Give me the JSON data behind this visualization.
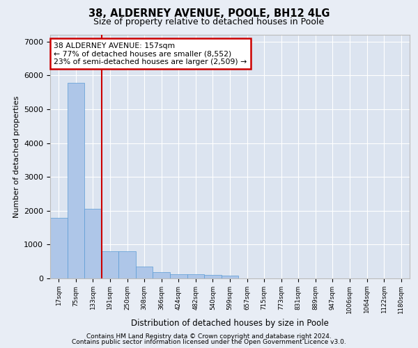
{
  "title1": "38, ALDERNEY AVENUE, POOLE, BH12 4LG",
  "title2": "Size of property relative to detached houses in Poole",
  "xlabel": "Distribution of detached houses by size in Poole",
  "ylabel": "Number of detached properties",
  "footnote1": "Contains HM Land Registry data © Crown copyright and database right 2024.",
  "footnote2": "Contains public sector information licensed under the Open Government Licence v3.0.",
  "annotation_title": "38 ALDERNEY AVENUE: 157sqm",
  "annotation_line1": "← 77% of detached houses are smaller (8,552)",
  "annotation_line2": "23% of semi-detached houses are larger (2,509) →",
  "bar_color": "#aec6e8",
  "bar_edge_color": "#5b9bd5",
  "marker_line_color": "#cc0000",
  "annotation_box_color": "#cc0000",
  "bg_color": "#e8edf5",
  "plot_bg_color": "#dce4f0",
  "categories": [
    "17sqm",
    "75sqm",
    "133sqm",
    "191sqm",
    "250sqm",
    "308sqm",
    "366sqm",
    "424sqm",
    "482sqm",
    "540sqm",
    "599sqm",
    "657sqm",
    "715sqm",
    "773sqm",
    "831sqm",
    "889sqm",
    "947sqm",
    "1006sqm",
    "1064sqm",
    "1122sqm",
    "1180sqm"
  ],
  "values": [
    1780,
    5780,
    2060,
    800,
    800,
    340,
    190,
    130,
    115,
    100,
    80,
    0,
    0,
    0,
    0,
    0,
    0,
    0,
    0,
    0,
    0
  ],
  "marker_bin_index": 2.5,
  "ylim": [
    0,
    7200
  ],
  "yticks": [
    0,
    1000,
    2000,
    3000,
    4000,
    5000,
    6000,
    7000
  ]
}
